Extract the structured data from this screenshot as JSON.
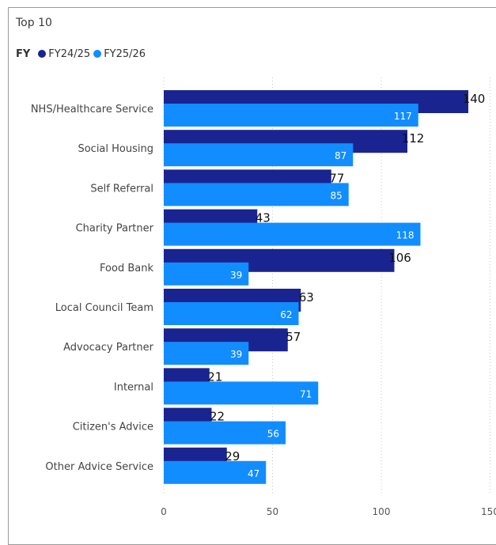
{
  "chart_data": {
    "type": "bar",
    "orientation": "horizontal",
    "title": "Top 10",
    "legend_title": "FY",
    "legend_position": "top-left",
    "categories": [
      "NHS/Healthcare Service",
      "Social Housing",
      "Self Referral",
      "Charity Partner",
      "Food Bank",
      "Local Council Team",
      "Advocacy Partner",
      "Internal",
      "Citizen's Advice",
      "Other Advice Service"
    ],
    "series": [
      {
        "name": "FY24/25",
        "color": "#1a2490",
        "values": [
          140,
          112,
          77,
          43,
          106,
          63,
          57,
          21,
          22,
          29
        ]
      },
      {
        "name": "FY25/26",
        "color": "#118dff",
        "values": [
          117,
          87,
          85,
          118,
          39,
          62,
          39,
          71,
          56,
          47
        ]
      }
    ],
    "xlim": [
      0,
      150
    ],
    "xticks": [
      "0",
      "50",
      "100",
      "150"
    ],
    "grid": true,
    "grid_style": "dotted-vertical"
  }
}
